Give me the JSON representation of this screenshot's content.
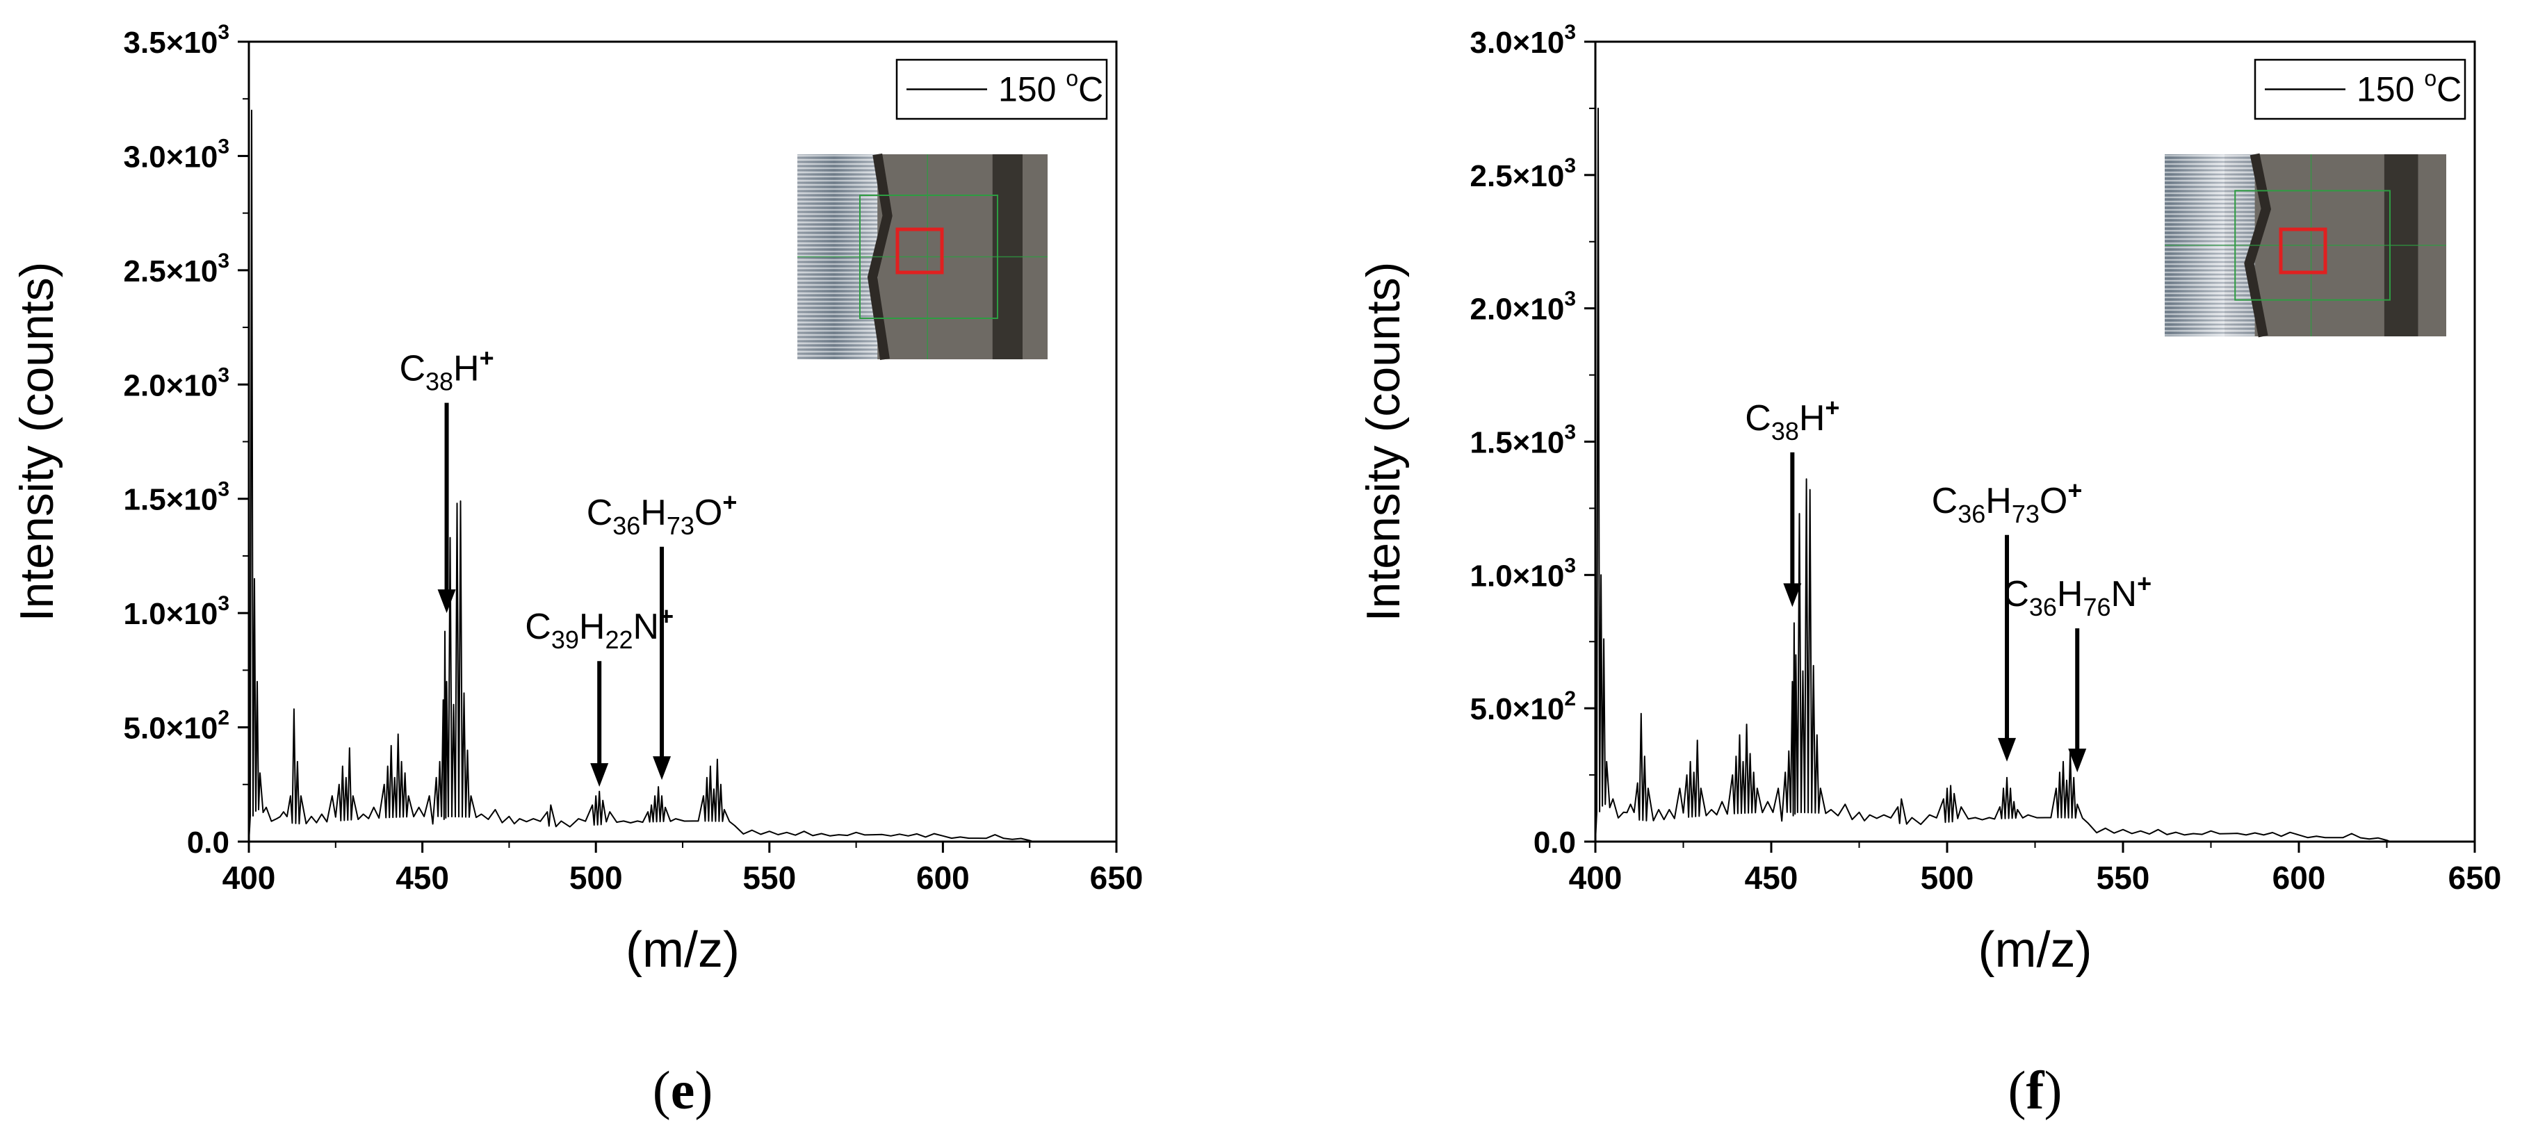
{
  "chart_data": [
    {
      "panel_label": "(e)",
      "type": "line",
      "xlabel": "(m/z)",
      "ylabel": "Intensity (counts)",
      "xlim": [
        400,
        650
      ],
      "ylim": [
        0,
        3500
      ],
      "x_ticks": [
        "400",
        "450",
        "500",
        "550",
        "600",
        "650"
      ],
      "y_ticks": [
        {
          "value": 0,
          "mantissa": "0.0",
          "exp": ""
        },
        {
          "value": 500,
          "mantissa": "5.0×10",
          "exp": "2"
        },
        {
          "value": 1000,
          "mantissa": "1.0×10",
          "exp": "3"
        },
        {
          "value": 1500,
          "mantissa": "1.5×10",
          "exp": "3"
        },
        {
          "value": 2000,
          "mantissa": "2.0×10",
          "exp": "3"
        },
        {
          "value": 2500,
          "mantissa": "2.5×10",
          "exp": "3"
        },
        {
          "value": 3000,
          "mantissa": "3.0×10",
          "exp": "3"
        },
        {
          "value": 3500,
          "mantissa": "3.5×10",
          "exp": "3"
        }
      ],
      "legend": {
        "label": "150 °C",
        "position": "top-right"
      },
      "series": [
        {
          "name": "150 °C",
          "peaks": [
            {
              "x": 400.8,
              "y": 3200
            },
            {
              "x": 401.6,
              "y": 1150
            },
            {
              "x": 402.4,
              "y": 700
            },
            {
              "x": 403.2,
              "y": 300
            },
            {
              "x": 405,
              "y": 150
            },
            {
              "x": 408,
              "y": 100
            },
            {
              "x": 410,
              "y": 130
            },
            {
              "x": 412,
              "y": 200
            },
            {
              "x": 413,
              "y": 580
            },
            {
              "x": 414,
              "y": 350
            },
            {
              "x": 415,
              "y": 200
            },
            {
              "x": 418,
              "y": 110
            },
            {
              "x": 421,
              "y": 120
            },
            {
              "x": 424,
              "y": 200
            },
            {
              "x": 426,
              "y": 250
            },
            {
              "x": 427,
              "y": 330
            },
            {
              "x": 428,
              "y": 280
            },
            {
              "x": 429,
              "y": 410
            },
            {
              "x": 430,
              "y": 200
            },
            {
              "x": 433,
              "y": 120
            },
            {
              "x": 436,
              "y": 150
            },
            {
              "x": 439,
              "y": 250
            },
            {
              "x": 440,
              "y": 330
            },
            {
              "x": 441,
              "y": 420
            },
            {
              "x": 442,
              "y": 280
            },
            {
              "x": 443,
              "y": 470
            },
            {
              "x": 444,
              "y": 350
            },
            {
              "x": 445,
              "y": 300
            },
            {
              "x": 446,
              "y": 200
            },
            {
              "x": 449,
              "y": 150
            },
            {
              "x": 452,
              "y": 200
            },
            {
              "x": 454,
              "y": 280
            },
            {
              "x": 455,
              "y": 350
            },
            {
              "x": 456,
              "y": 620
            },
            {
              "x": 456.5,
              "y": 920
            },
            {
              "x": 457,
              "y": 700
            },
            {
              "x": 458,
              "y": 1330
            },
            {
              "x": 459,
              "y": 600
            },
            {
              "x": 460,
              "y": 1480
            },
            {
              "x": 461,
              "y": 1490
            },
            {
              "x": 462,
              "y": 650
            },
            {
              "x": 463,
              "y": 400
            },
            {
              "x": 464,
              "y": 200
            },
            {
              "x": 467,
              "y": 120
            },
            {
              "x": 471,
              "y": 140
            },
            {
              "x": 475,
              "y": 110
            },
            {
              "x": 478,
              "y": 100
            },
            {
              "x": 482,
              "y": 100
            },
            {
              "x": 486,
              "y": 130
            },
            {
              "x": 487,
              "y": 160
            },
            {
              "x": 490,
              "y": 90
            },
            {
              "x": 495,
              "y": 100
            },
            {
              "x": 499,
              "y": 160
            },
            {
              "x": 500,
              "y": 200
            },
            {
              "x": 501,
              "y": 220
            },
            {
              "x": 502,
              "y": 180
            },
            {
              "x": 504,
              "y": 130
            },
            {
              "x": 508,
              "y": 90
            },
            {
              "x": 512,
              "y": 90
            },
            {
              "x": 515,
              "y": 130
            },
            {
              "x": 516,
              "y": 160
            },
            {
              "x": 517,
              "y": 200
            },
            {
              "x": 518,
              "y": 240
            },
            {
              "x": 519,
              "y": 200
            },
            {
              "x": 520,
              "y": 150
            },
            {
              "x": 523,
              "y": 100
            },
            {
              "x": 528,
              "y": 90
            },
            {
              "x": 531,
              "y": 200
            },
            {
              "x": 532,
              "y": 280
            },
            {
              "x": 533,
              "y": 330
            },
            {
              "x": 534,
              "y": 230
            },
            {
              "x": 535,
              "y": 360
            },
            {
              "x": 536,
              "y": 250
            },
            {
              "x": 537,
              "y": 140
            },
            {
              "x": 540,
              "y": 70
            },
            {
              "x": 545,
              "y": 50
            },
            {
              "x": 550,
              "y": 45
            },
            {
              "x": 555,
              "y": 40
            },
            {
              "x": 560,
              "y": 45
            },
            {
              "x": 565,
              "y": 35
            },
            {
              "x": 570,
              "y": 30
            },
            {
              "x": 575,
              "y": 40
            },
            {
              "x": 580,
              "y": 30
            },
            {
              "x": 585,
              "y": 25
            },
            {
              "x": 590,
              "y": 25
            },
            {
              "x": 595,
              "y": 20
            },
            {
              "x": 600,
              "y": 25
            },
            {
              "x": 605,
              "y": 20
            },
            {
              "x": 610,
              "y": 15
            },
            {
              "x": 615,
              "y": 30
            },
            {
              "x": 620,
              "y": 10
            },
            {
              "x": 625,
              "y": 5
            }
          ]
        }
      ],
      "annotations": [
        {
          "parts": [
            {
              "t": "C"
            },
            {
              "t": "38",
              "sub": true
            },
            {
              "t": "H"
            },
            {
              "t": "+",
              "sup": true
            }
          ],
          "x": 457,
          "y_tip": 1000,
          "y_tail": 1920
        },
        {
          "parts": [
            {
              "t": "C"
            },
            {
              "t": "39",
              "sub": true
            },
            {
              "t": "H"
            },
            {
              "t": "22",
              "sub": true
            },
            {
              "t": "N"
            },
            {
              "t": "+",
              "sup": true
            }
          ],
          "x": 501,
          "y_tip": 240,
          "y_tail": 790
        },
        {
          "parts": [
            {
              "t": "C"
            },
            {
              "t": "36",
              "sub": true
            },
            {
              "t": "H"
            },
            {
              "t": "73",
              "sub": true
            },
            {
              "t": "O"
            },
            {
              "t": "+",
              "sup": true
            }
          ],
          "x": 519,
          "y_tip": 270,
          "y_tail": 1290
        }
      ]
    },
    {
      "panel_label": "(f)",
      "type": "line",
      "xlabel": "(m/z)",
      "ylabel": "Intensity (counts)",
      "xlim": [
        400,
        650
      ],
      "ylim": [
        0,
        3000
      ],
      "x_ticks": [
        "400",
        "450",
        "500",
        "550",
        "600",
        "650"
      ],
      "y_ticks": [
        {
          "value": 0,
          "mantissa": "0.0",
          "exp": ""
        },
        {
          "value": 500,
          "mantissa": "5.0×10",
          "exp": "2"
        },
        {
          "value": 1000,
          "mantissa": "1.0×10",
          "exp": "3"
        },
        {
          "value": 1500,
          "mantissa": "1.5×10",
          "exp": "3"
        },
        {
          "value": 2000,
          "mantissa": "2.0×10",
          "exp": "3"
        },
        {
          "value": 2500,
          "mantissa": "2.5×10",
          "exp": "3"
        },
        {
          "value": 3000,
          "mantissa": "3.0×10",
          "exp": "3"
        }
      ],
      "legend": {
        "label": "150 °C",
        "position": "top-right"
      },
      "series": [
        {
          "name": "150 °C",
          "peaks": [
            {
              "x": 400.8,
              "y": 2750
            },
            {
              "x": 401.6,
              "y": 1000
            },
            {
              "x": 402.4,
              "y": 760
            },
            {
              "x": 403.2,
              "y": 300
            },
            {
              "x": 405,
              "y": 160
            },
            {
              "x": 408,
              "y": 110
            },
            {
              "x": 410,
              "y": 140
            },
            {
              "x": 412,
              "y": 220
            },
            {
              "x": 413,
              "y": 480
            },
            {
              "x": 414,
              "y": 320
            },
            {
              "x": 415,
              "y": 200
            },
            {
              "x": 418,
              "y": 120
            },
            {
              "x": 421,
              "y": 120
            },
            {
              "x": 424,
              "y": 200
            },
            {
              "x": 426,
              "y": 250
            },
            {
              "x": 427,
              "y": 300
            },
            {
              "x": 428,
              "y": 260
            },
            {
              "x": 429,
              "y": 380
            },
            {
              "x": 430,
              "y": 200
            },
            {
              "x": 433,
              "y": 120
            },
            {
              "x": 436,
              "y": 150
            },
            {
              "x": 439,
              "y": 250
            },
            {
              "x": 440,
              "y": 320
            },
            {
              "x": 441,
              "y": 400
            },
            {
              "x": 442,
              "y": 300
            },
            {
              "x": 443,
              "y": 440
            },
            {
              "x": 444,
              "y": 330
            },
            {
              "x": 445,
              "y": 260
            },
            {
              "x": 446,
              "y": 200
            },
            {
              "x": 449,
              "y": 150
            },
            {
              "x": 452,
              "y": 200
            },
            {
              "x": 454,
              "y": 260
            },
            {
              "x": 455,
              "y": 340
            },
            {
              "x": 456,
              "y": 600
            },
            {
              "x": 456.5,
              "y": 820
            },
            {
              "x": 457,
              "y": 700
            },
            {
              "x": 458,
              "y": 1230
            },
            {
              "x": 459,
              "y": 640
            },
            {
              "x": 460,
              "y": 1360
            },
            {
              "x": 461,
              "y": 1320
            },
            {
              "x": 462,
              "y": 660
            },
            {
              "x": 463,
              "y": 400
            },
            {
              "x": 464,
              "y": 200
            },
            {
              "x": 467,
              "y": 120
            },
            {
              "x": 471,
              "y": 140
            },
            {
              "x": 475,
              "y": 110
            },
            {
              "x": 478,
              "y": 100
            },
            {
              "x": 482,
              "y": 100
            },
            {
              "x": 486,
              "y": 130
            },
            {
              "x": 487,
              "y": 160
            },
            {
              "x": 490,
              "y": 90
            },
            {
              "x": 495,
              "y": 100
            },
            {
              "x": 499,
              "y": 160
            },
            {
              "x": 500,
              "y": 200
            },
            {
              "x": 501,
              "y": 210
            },
            {
              "x": 502,
              "y": 180
            },
            {
              "x": 504,
              "y": 130
            },
            {
              "x": 508,
              "y": 90
            },
            {
              "x": 512,
              "y": 90
            },
            {
              "x": 515,
              "y": 130
            },
            {
              "x": 516,
              "y": 200
            },
            {
              "x": 517,
              "y": 240
            },
            {
              "x": 518,
              "y": 200
            },
            {
              "x": 519,
              "y": 150
            },
            {
              "x": 520,
              "y": 120
            },
            {
              "x": 523,
              "y": 100
            },
            {
              "x": 528,
              "y": 90
            },
            {
              "x": 531,
              "y": 200
            },
            {
              "x": 532,
              "y": 260
            },
            {
              "x": 533,
              "y": 300
            },
            {
              "x": 534,
              "y": 230
            },
            {
              "x": 535,
              "y": 340
            },
            {
              "x": 536,
              "y": 240
            },
            {
              "x": 537,
              "y": 140
            },
            {
              "x": 540,
              "y": 70
            },
            {
              "x": 545,
              "y": 50
            },
            {
              "x": 550,
              "y": 45
            },
            {
              "x": 555,
              "y": 40
            },
            {
              "x": 560,
              "y": 45
            },
            {
              "x": 565,
              "y": 35
            },
            {
              "x": 570,
              "y": 30
            },
            {
              "x": 575,
              "y": 40
            },
            {
              "x": 580,
              "y": 30
            },
            {
              "x": 585,
              "y": 25
            },
            {
              "x": 590,
              "y": 25
            },
            {
              "x": 595,
              "y": 20
            },
            {
              "x": 600,
              "y": 25
            },
            {
              "x": 605,
              "y": 20
            },
            {
              "x": 610,
              "y": 15
            },
            {
              "x": 615,
              "y": 30
            },
            {
              "x": 620,
              "y": 10
            },
            {
              "x": 625,
              "y": 5
            }
          ]
        }
      ],
      "annotations": [
        {
          "parts": [
            {
              "t": "C"
            },
            {
              "t": "38",
              "sub": true
            },
            {
              "t": "H"
            },
            {
              "t": "+",
              "sup": true
            }
          ],
          "x": 456,
          "y_tip": 880,
          "y_tail": 1460
        },
        {
          "parts": [
            {
              "t": "C"
            },
            {
              "t": "36",
              "sub": true
            },
            {
              "t": "H"
            },
            {
              "t": "73",
              "sub": true
            },
            {
              "t": "O"
            },
            {
              "t": "+",
              "sup": true
            }
          ],
          "x": 517,
          "y_tip": 300,
          "y_tail": 1150
        },
        {
          "parts": [
            {
              "t": "C"
            },
            {
              "t": "36",
              "sub": true
            },
            {
              "t": "H"
            },
            {
              "t": "76",
              "sub": true
            },
            {
              "t": "N"
            },
            {
              "t": "+",
              "sup": true
            }
          ],
          "x": 537,
          "y_tip": 260,
          "y_tail": 800
        }
      ]
    }
  ],
  "colors": {
    "line": "#000000",
    "inset_roi": "#e02020",
    "inset_grid": "#2e9c42",
    "inset_sample": "#6e6a64",
    "inset_edge": "#2e2a26"
  }
}
